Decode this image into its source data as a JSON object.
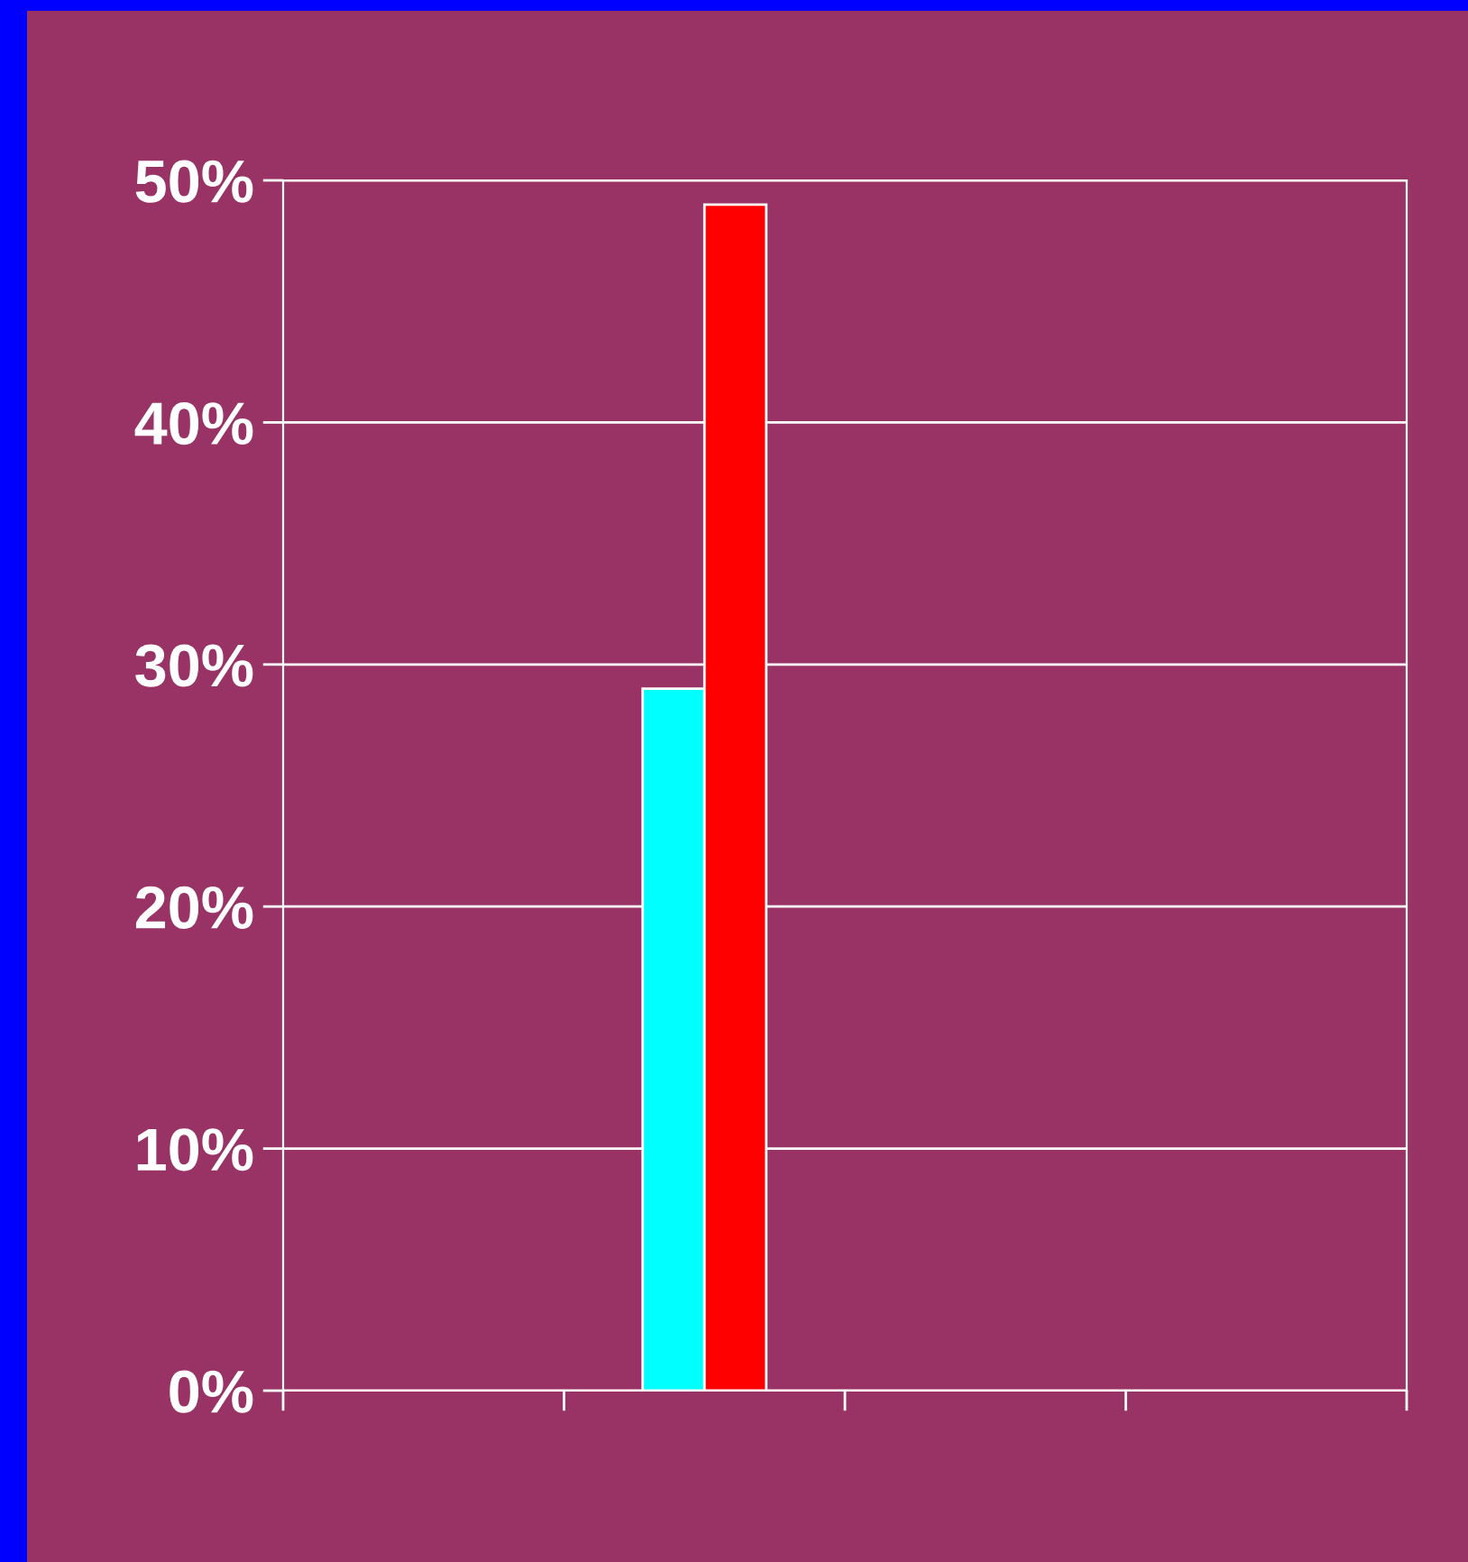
{
  "chart_data": {
    "type": "bar",
    "categories": [
      null,
      null,
      null,
      null
    ],
    "series": [
      {
        "color": "#00ffff",
        "values": [
          null,
          29,
          null,
          null
        ]
      },
      {
        "color": "#ff0000",
        "values": [
          null,
          49,
          null,
          null
        ]
      }
    ],
    "ylim": [
      0,
      50
    ],
    "yticks": [
      {
        "value": 0,
        "label": "0%"
      },
      {
        "value": 10,
        "label": "10%"
      },
      {
        "value": 20,
        "label": "20%"
      },
      {
        "value": 30,
        "label": "30%"
      },
      {
        "value": 40,
        "label": "40%"
      },
      {
        "value": 50,
        "label": "50%"
      }
    ],
    "grid": "y"
  }
}
